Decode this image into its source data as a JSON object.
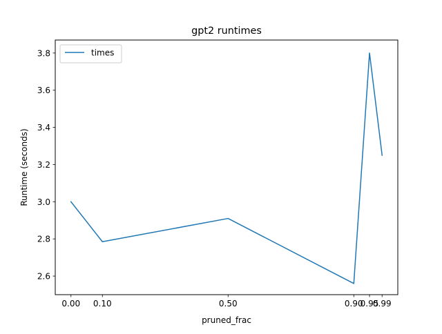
{
  "chart_data": {
    "type": "line",
    "title": "gpt2 runtimes",
    "xlabel": "pruned_frac",
    "ylabel": "Runtime (seconds)",
    "xlim": [
      -0.05,
      1.04
    ],
    "ylim": [
      2.5,
      3.87
    ],
    "xticks": [
      0.0,
      0.1,
      0.5,
      0.9,
      0.95,
      0.99
    ],
    "xtick_labels": [
      "0.00",
      "0.10",
      "0.50",
      "0.90",
      "0.95",
      "0.99"
    ],
    "yticks": [
      2.6,
      2.8,
      3.0,
      3.2,
      3.4,
      3.6,
      3.8
    ],
    "ytick_labels": [
      "2.6",
      "2.8",
      "3.0",
      "3.2",
      "3.4",
      "3.6",
      "3.8"
    ],
    "grid": false,
    "legend": "top-left",
    "series": [
      {
        "name": "times",
        "color": "#1f77b4",
        "x": [
          0.0,
          0.1,
          0.5,
          0.9,
          0.95,
          0.99
        ],
        "y": [
          3.0,
          2.785,
          2.91,
          2.56,
          3.8,
          3.25
        ]
      }
    ]
  }
}
